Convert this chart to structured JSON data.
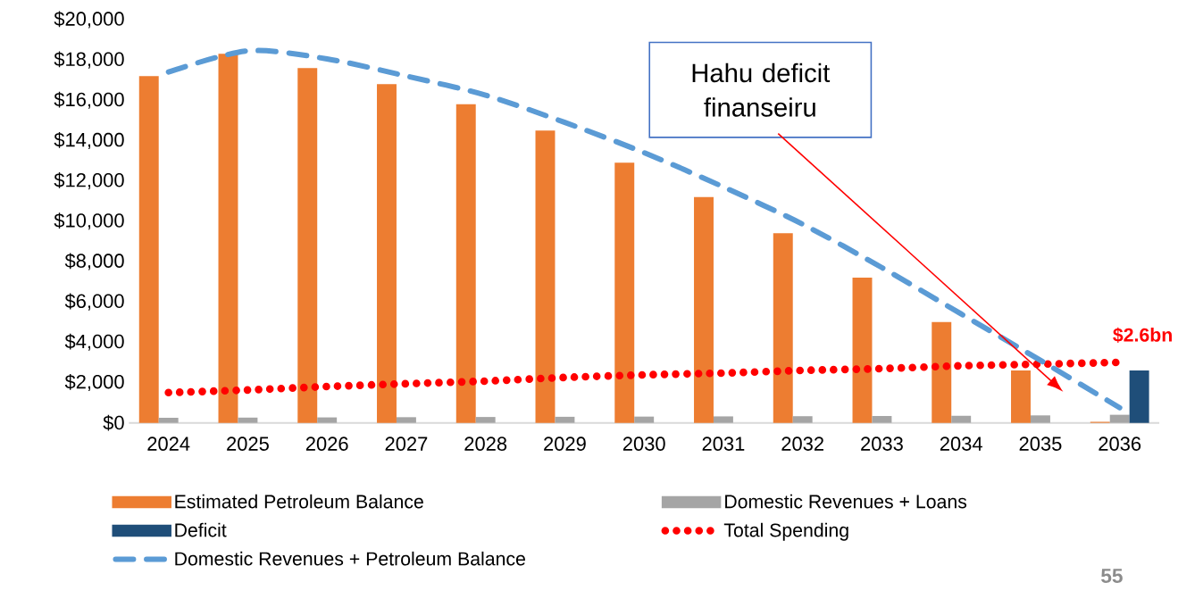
{
  "chart_data": {
    "type": "bar",
    "categories": [
      "2024",
      "2025",
      "2026",
      "2027",
      "2028",
      "2029",
      "2030",
      "2031",
      "2032",
      "2033",
      "2034",
      "2035",
      "2036"
    ],
    "series": [
      {
        "name": "Estimated Petroleum Balance",
        "type": "bar",
        "color": "#ed7d31",
        "values": [
          17200,
          18300,
          17600,
          16800,
          15800,
          14500,
          12900,
          11200,
          9400,
          7200,
          5000,
          2600,
          50
        ]
      },
      {
        "name": "Domestic Revenues + Loans",
        "type": "bar",
        "color": "#a5a5a5",
        "values": [
          250,
          260,
          270,
          280,
          290,
          300,
          310,
          320,
          330,
          340,
          350,
          370,
          400
        ]
      },
      {
        "name": "Deficit",
        "type": "bar",
        "color": "#1f4e79",
        "values": [
          null,
          null,
          null,
          null,
          null,
          null,
          null,
          null,
          null,
          null,
          null,
          null,
          2600
        ]
      },
      {
        "name": "Total Spending",
        "type": "line",
        "color": "#ff0000",
        "line_style": "dotted",
        "values": [
          1500,
          1630,
          1800,
          1940,
          2070,
          2250,
          2380,
          2470,
          2600,
          2690,
          2830,
          2910,
          3000
        ]
      },
      {
        "name": "Domestic Revenues + Petroleum Balance",
        "type": "line",
        "color": "#5b9bd5",
        "line_style": "dashed",
        "values": [
          17400,
          18450,
          18050,
          17200,
          16250,
          14900,
          13400,
          11700,
          9850,
          7700,
          5400,
          3100,
          750
        ]
      }
    ],
    "ylim": [
      0,
      20000
    ],
    "yticks": [
      {
        "value": 0,
        "label": "$0"
      },
      {
        "value": 2000,
        "label": "$2,000"
      },
      {
        "value": 4000,
        "label": "$4,000"
      },
      {
        "value": 6000,
        "label": "$6,000"
      },
      {
        "value": 8000,
        "label": "$8,000"
      },
      {
        "value": 10000,
        "label": "$10,000"
      },
      {
        "value": 12000,
        "label": "$12,000"
      },
      {
        "value": 14000,
        "label": "$14,000"
      },
      {
        "value": 16000,
        "label": "$16,000"
      },
      {
        "value": 18000,
        "label": "$18,000"
      },
      {
        "value": 20000,
        "label": "$20,000"
      }
    ],
    "grid": false,
    "legend": "bottom",
    "marker": "none",
    "annotations": [
      "Hahu deficit finanseiru",
      {
        "text": "$2.6bn",
        "x": "2036",
        "y": 2600
      },
      "55"
    ]
  }
}
